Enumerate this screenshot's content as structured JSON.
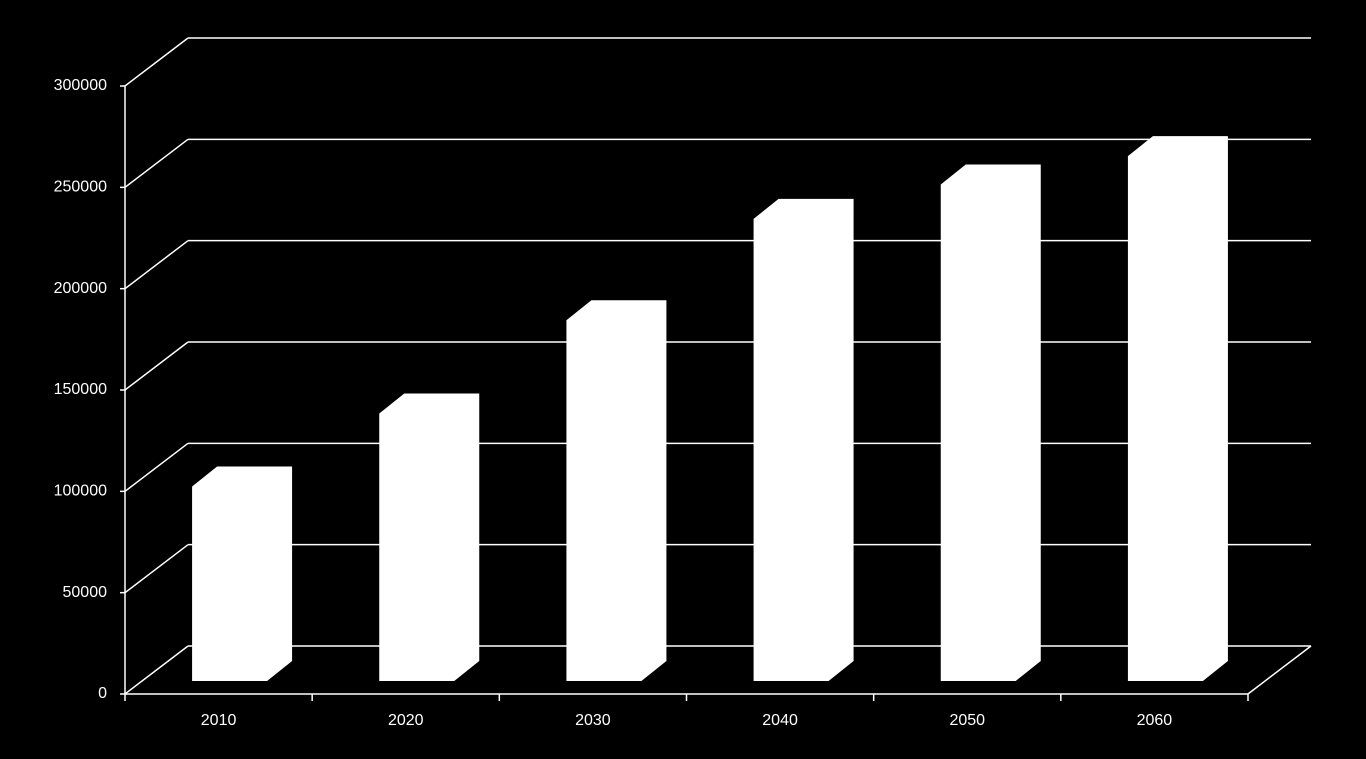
{
  "chart_data": {
    "type": "bar",
    "categories": [
      "2010",
      "2020",
      "2030",
      "2040",
      "2050",
      "2060"
    ],
    "values": [
      96000,
      132000,
      178000,
      228000,
      245000,
      259000
    ],
    "color": "#ffffff",
    "ylim": [
      0,
      300000
    ],
    "yticks": [
      0,
      50000,
      100000,
      150000,
      200000,
      250000,
      300000
    ],
    "grid": true
  }
}
